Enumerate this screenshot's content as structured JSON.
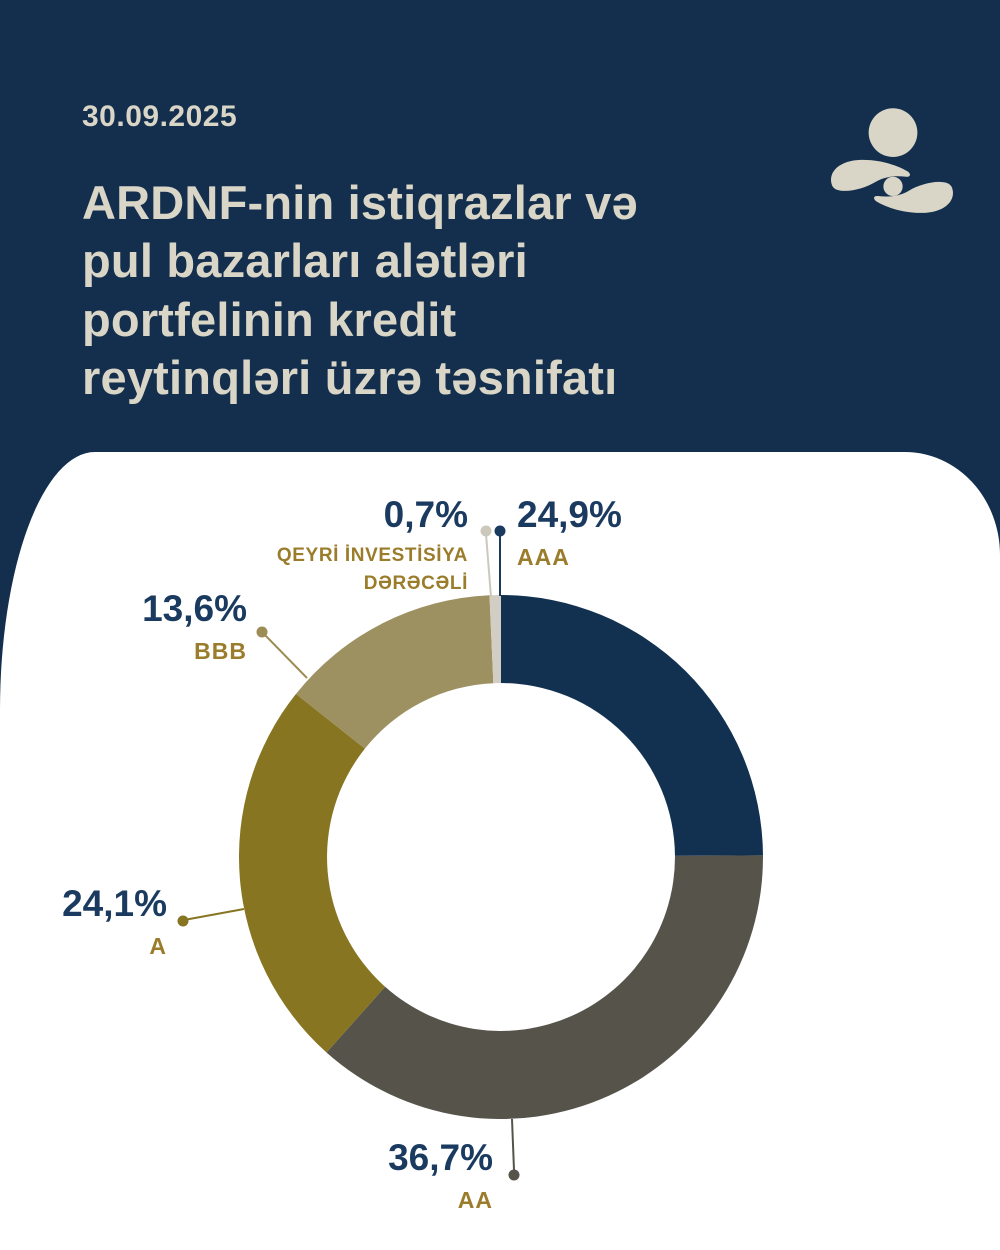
{
  "header": {
    "date": "30.09.2025",
    "title": "ARDNF-nin istiqrazlar və\npul bazarları alətləri\nportfelinin kredit\nreytinqləri üzrə təsnifatı"
  },
  "logo": {
    "name": "ardnf-logo"
  },
  "colors": {
    "background": "#132f4d",
    "card": "#ffffff",
    "cream": "#d9d5c7",
    "value_text": "#1a3a5f",
    "category_text": "#9a7c2b"
  },
  "chart_data": {
    "type": "pie",
    "subtype": "donut",
    "title": "ARDNF-nin istiqrazlar və pul bazarları alətləri portfelinin kredit reytinqləri üzrə təsnifatı",
    "as_of_date": "30.09.2025",
    "unit": "%",
    "start_angle_deg": 0,
    "direction": "clockwise",
    "inner_radius_ratio": 0.664,
    "segments": [
      {
        "key": "aaa",
        "label": "AAA",
        "value": 24.9,
        "display": "24,9%",
        "color": "#123151"
      },
      {
        "key": "aa",
        "label": "AA",
        "value": 36.7,
        "display": "36,7%",
        "color": "#56544a"
      },
      {
        "key": "a",
        "label": "A",
        "value": 24.1,
        "display": "24,1%",
        "color": "#877522"
      },
      {
        "key": "bbb",
        "label": "BBB",
        "value": 13.6,
        "display": "13,6%",
        "color": "#9e9161"
      },
      {
        "key": "qid",
        "label": "Qeyri investisiya dərəcəli",
        "label_display": "QEYRİ İNVESTİSİYA\nDƏRƏCƏLİ",
        "value": 0.7,
        "display": "0,7%",
        "color": "#d2cec3"
      }
    ]
  }
}
